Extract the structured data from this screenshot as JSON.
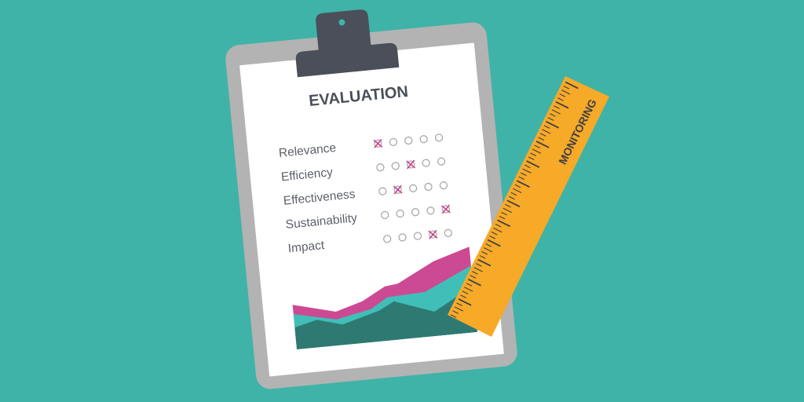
{
  "colors": {
    "background": "#3fb3a8",
    "board": "#b3b3b3",
    "clip": "#4a4f59",
    "paper": "#ffffff",
    "mark": "#c9408c",
    "chart_magenta": "#cc4a93",
    "chart_teal": "#40bfb8",
    "chart_dark": "#2e7a72",
    "ruler": "#f7a928"
  },
  "clipboard": {
    "title": "EVALUATION",
    "scale_points": 5,
    "criteria": [
      {
        "label": "Relevance",
        "selected": 1
      },
      {
        "label": "Efficiency",
        "selected": 3
      },
      {
        "label": "Effectiveness",
        "selected": 2
      },
      {
        "label": "Sustainability",
        "selected": 5
      },
      {
        "label": "Impact",
        "selected": 4
      }
    ]
  },
  "ruler": {
    "label": "MONITORING"
  }
}
